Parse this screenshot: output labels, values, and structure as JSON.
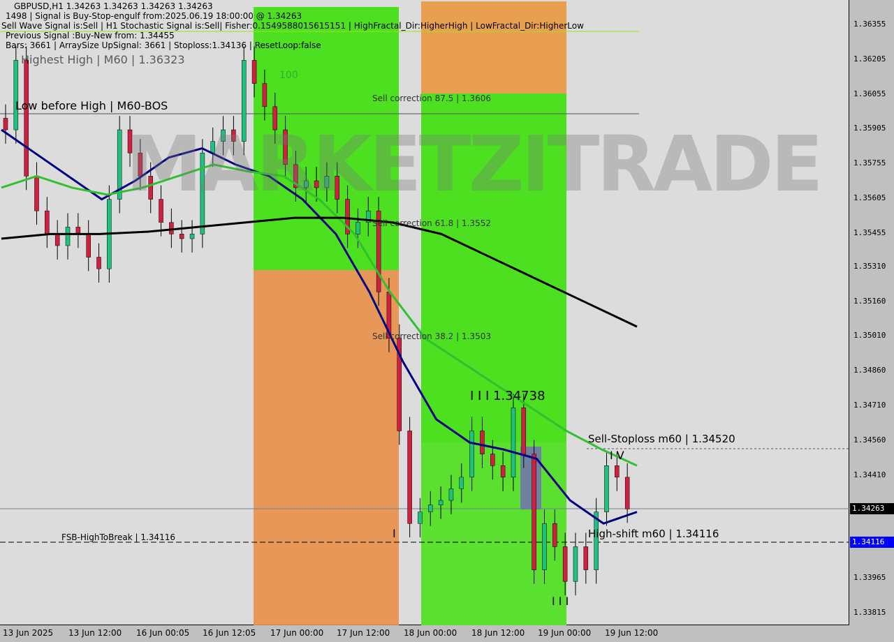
{
  "header": {
    "line1": "GBPUSD,H1  1.34263 1.34263 1.34263 1.34263",
    "line2": "1498 | Signal is Buy-Stop-engulf from:2025.06.19 18:00:00 @ 1.34263",
    "line3": "Sell Wave Signal is:Sell | H1 Stochastic Signal is:Sell| Fisher:0.1549588015615151 | HighFractal_Dir:HigherHigh | LowFractal_Dir:HigherLow",
    "line3b": "Highest High | M60 | 1.36323",
    "line4": "Previous Signal :Buy-New from: 1.34455",
    "line5": "Bars: 3661 | ArraySize UpSignal: 3661 | Stoploss:1.34136 | ResetLoop:false"
  },
  "labels": {
    "low_before_high": "Low before High | M60-BOS",
    "sell_875": "Sell correction 87.5 | 1.3606",
    "sell_618": "Sell correction 61.8 | 1.3552",
    "sell_382": "Sell correction 38.2 | 1.3503",
    "wave": "I I I 1.34738",
    "sell_stoploss": "Sell-Stoploss m60 | 1.34520",
    "iv": "I V",
    "high_shift": "High-shift m60 | 1.34116",
    "fsb": "FSB-HighToBreak | 1.34116",
    "i": "I",
    "iii": "I I I",
    "hundred": "100",
    "watermark": "MARKETZITRADE"
  },
  "price_tags": {
    "current": "1.34263",
    "level": "1.34116"
  },
  "colors": {
    "bull": "#20c080",
    "bear": "#d02040",
    "ma_fast": "#000080",
    "ma_mid": "#30c030",
    "ma_slow": "#000000",
    "green_zone": "#4ce020",
    "orange_zone": "#e8904a"
  },
  "chart_data": {
    "type": "candlestick",
    "ylim": [
      1.33765,
      1.36405
    ],
    "yticks": [
      "1.36355",
      "1.36205",
      "1.36055",
      "1.35905",
      "1.35755",
      "1.35605",
      "1.35455",
      "1.35310",
      "1.35160",
      "1.35010",
      "1.34860",
      "1.34710",
      "1.34560",
      "1.34410",
      "1.34263",
      "1.34116",
      "1.33965",
      "1.33815"
    ],
    "xticks": [
      "13 Jun 2025",
      "13 Jun 12:00",
      "16 Jun 00:05",
      "16 Jun 12:05",
      "17 Jun 00:00",
      "17 Jun 12:00",
      "18 Jun 00:00",
      "18 Jun 12:00",
      "19 Jun 00:00",
      "19 Jun 12:00"
    ],
    "closes": [
      1.359,
      1.362,
      1.357,
      1.3555,
      1.3545,
      1.354,
      1.3548,
      1.3545,
      1.3535,
      1.353,
      1.356,
      1.359,
      1.358,
      1.357,
      1.356,
      1.355,
      1.3545,
      1.3543,
      1.3545,
      1.358,
      1.3585,
      1.359,
      1.3585,
      1.362,
      1.361,
      1.36,
      1.359,
      1.3575,
      1.3565,
      1.3568,
      1.3565,
      1.357,
      1.356,
      1.3545,
      1.355,
      1.3555,
      1.352,
      1.35,
      1.346,
      1.342,
      1.3425,
      1.3428,
      1.343,
      1.3435,
      1.344,
      1.346,
      1.345,
      1.3445,
      1.344,
      1.347,
      1.345,
      1.34,
      1.342,
      1.341,
      1.3395,
      1.341,
      1.34,
      1.3425,
      1.3445,
      1.344,
      1.34263
    ],
    "ma_fast": [
      1.359,
      1.358,
      1.357,
      1.356,
      1.3568,
      1.3578,
      1.3582,
      1.3575,
      1.357,
      1.356,
      1.3545,
      1.352,
      1.349,
      1.3465,
      1.3455,
      1.3452,
      1.3448,
      1.343,
      1.342,
      1.3425
    ],
    "ma_mid": [
      1.3565,
      1.357,
      1.3565,
      1.3562,
      1.3565,
      1.357,
      1.3575,
      1.3572,
      1.357,
      1.356,
      1.3545,
      1.352,
      1.35,
      1.349,
      1.348,
      1.347,
      1.346,
      1.3452,
      1.3445
    ],
    "ma_slow": [
      1.3543,
      1.3545,
      1.3545,
      1.3546,
      1.3548,
      1.355,
      1.3552,
      1.3552,
      1.355,
      1.3545,
      1.3535,
      1.3525,
      1.3515,
      1.3505
    ]
  }
}
